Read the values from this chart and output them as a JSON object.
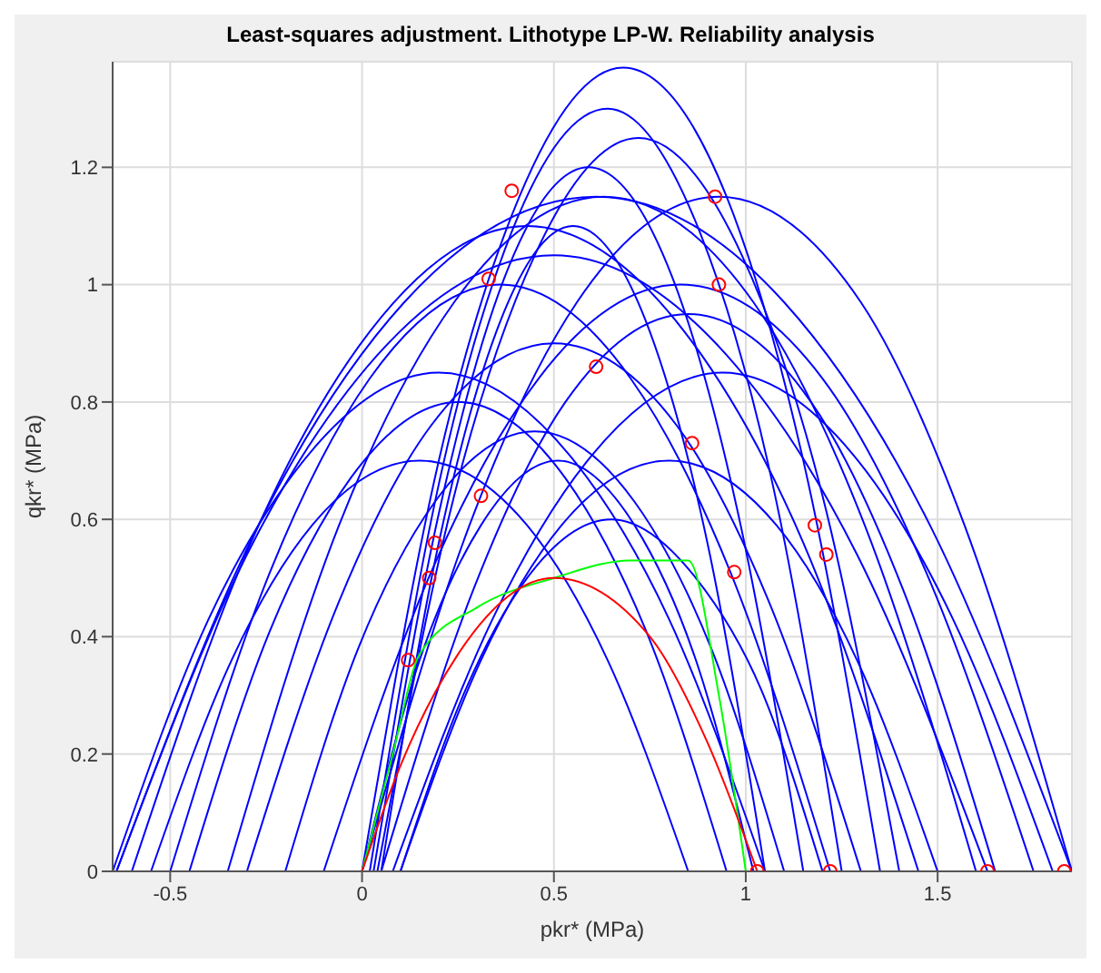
{
  "chart_data": {
    "type": "line",
    "title": "Least-squares adjustment. Lithotype LP-W. Reliability analysis",
    "xlabel": "pkr* (MPa)",
    "ylabel": "qkr* (MPa)",
    "xlim": [
      -0.65,
      1.85
    ],
    "ylim": [
      0,
      1.38
    ],
    "xticks": [
      -0.5,
      0,
      0.5,
      1,
      1.5
    ],
    "yticks": [
      0,
      0.2,
      0.4,
      0.6,
      0.8,
      1,
      1.2
    ],
    "grid": true,
    "line_style": "solid",
    "series": [
      {
        "color": "#0000ff",
        "marker": "none",
        "x": [
          -0.64,
          -0.27,
          0.11,
          0.61,
          1.1,
          1.48,
          1.85
        ],
        "values": [
          0,
          0.59,
          0.97,
          1.15,
          0.97,
          0.59,
          0
        ]
      },
      {
        "color": "#0000ff",
        "marker": "none",
        "x": [
          -0.64,
          -0.3,
          0.04,
          0.5,
          0.95,
          1.29,
          1.63
        ],
        "values": [
          0,
          0.54,
          0.88,
          1.05,
          0.88,
          0.54,
          0
        ]
      },
      {
        "color": "#0000ff",
        "marker": "none",
        "x": [
          -0.5,
          -0.24,
          0.02,
          0.36,
          0.7,
          0.96,
          1.22
        ],
        "values": [
          0,
          0.51,
          0.84,
          1,
          0.84,
          0.51,
          0
        ]
      },
      {
        "color": "#0000ff",
        "marker": "none",
        "x": [
          -0.3,
          -0.06,
          0.18,
          0.5,
          0.82,
          1.06,
          1.3
        ],
        "values": [
          0,
          0.46,
          0.76,
          0.9,
          0.76,
          0.46,
          0
        ]
      },
      {
        "color": "#0000ff",
        "marker": "none",
        "x": [
          -0.2,
          -0.01,
          0.19,
          0.45,
          0.71,
          0.91,
          1.1
        ],
        "values": [
          0,
          0.38,
          0.63,
          0.75,
          0.63,
          0.38,
          0
        ]
      },
      {
        "color": "#0000ff",
        "marker": "none",
        "x": [
          0,
          0.2,
          0.41,
          0.68,
          0.95,
          1.15,
          1.35
        ],
        "values": [
          0,
          0.7,
          1.15,
          1.37,
          1.15,
          0.7,
          0
        ]
      },
      {
        "color": "#0000ff",
        "marker": "none",
        "x": [
          0.02,
          0.2,
          0.39,
          0.64,
          0.88,
          1.07,
          1.25
        ],
        "values": [
          0,
          0.66,
          1.09,
          1.3,
          1.09,
          0.66,
          0
        ]
      },
      {
        "color": "#0000ff",
        "marker": "none",
        "x": [
          0.03,
          0.2,
          0.37,
          0.59,
          0.81,
          0.98,
          1.15
        ],
        "values": [
          0,
          0.61,
          1.01,
          1.2,
          1.01,
          0.61,
          0
        ]
      },
      {
        "color": "#0000ff",
        "marker": "none",
        "x": [
          0.05,
          0.2,
          0.35,
          0.55,
          0.75,
          0.9,
          1.05
        ],
        "values": [
          0,
          0.56,
          0.92,
          1.1,
          0.92,
          0.56,
          0
        ]
      },
      {
        "color": "#0000ff",
        "marker": "none",
        "x": [
          0,
          0.28,
          0.56,
          0.93,
          1.3,
          1.57,
          1.85
        ],
        "values": [
          0,
          0.59,
          0.97,
          1.15,
          0.97,
          0.59,
          0
        ]
      },
      {
        "color": "#0000ff",
        "marker": "none",
        "x": [
          0.05,
          0.29,
          0.53,
          0.85,
          1.17,
          1.41,
          1.65
        ],
        "values": [
          0,
          0.48,
          0.8,
          0.95,
          0.8,
          0.48,
          0
        ]
      },
      {
        "color": "#0000ff",
        "marker": "none",
        "x": [
          -0.65,
          -0.4,
          -0.14,
          0.2,
          0.54,
          0.8,
          1.05
        ],
        "values": [
          0,
          0.43,
          0.71,
          0.85,
          0.71,
          0.43,
          0
        ]
      },
      {
        "color": "#0000ff",
        "marker": "none",
        "x": [
          -0.45,
          -0.24,
          -0.03,
          0.25,
          0.53,
          0.74,
          0.95
        ],
        "values": [
          0,
          0.41,
          0.67,
          0.8,
          0.67,
          0.41,
          0
        ]
      },
      {
        "color": "#0000ff",
        "marker": "none",
        "x": [
          0.1,
          0.31,
          0.52,
          0.8,
          1.08,
          1.29,
          1.5
        ],
        "values": [
          0,
          0.36,
          0.59,
          0.7,
          0.59,
          0.36,
          0
        ]
      },
      {
        "color": "#0000ff",
        "marker": "none",
        "x": [
          0.1,
          0.27,
          0.43,
          0.65,
          0.87,
          1.04,
          1.2
        ],
        "values": [
          0,
          0.31,
          0.5,
          0.6,
          0.5,
          0.31,
          0
        ]
      },
      {
        "color": "#0000ff",
        "marker": "none",
        "x": [
          -0.6,
          -0.29,
          0.02,
          0.43,
          0.84,
          1.15,
          1.45
        ],
        "values": [
          0,
          0.56,
          0.92,
          1.1,
          0.92,
          0.56,
          0
        ]
      },
      {
        "color": "#0000ff",
        "marker": "none",
        "x": [
          -0.1,
          0.18,
          0.46,
          0.83,
          1.2,
          1.47,
          1.75
        ],
        "values": [
          0,
          0.51,
          0.84,
          1,
          0.84,
          0.51,
          0
        ]
      },
      {
        "color": "#0000ff",
        "marker": "none",
        "x": [
          0.08,
          0.34,
          0.6,
          0.94,
          1.28,
          1.54,
          1.8
        ],
        "values": [
          0,
          0.43,
          0.71,
          0.85,
          0.71,
          0.43,
          0
        ]
      },
      {
        "color": "#0000ff",
        "marker": "none",
        "x": [
          0,
          0.15,
          0.31,
          0.51,
          0.71,
          0.87,
          1.02
        ],
        "values": [
          0,
          0.36,
          0.59,
          0.7,
          0.59,
          0.36,
          0
        ]
      },
      {
        "color": "#0000ff",
        "marker": "none",
        "x": [
          -0.35,
          -0.06,
          0.24,
          0.63,
          1.02,
          1.31,
          1.6
        ],
        "values": [
          0,
          0.59,
          0.97,
          1.15,
          0.97,
          0.59,
          0
        ]
      },
      {
        "color": "#0000ff",
        "marker": "none",
        "x": [
          0.04,
          0.24,
          0.45,
          0.72,
          0.99,
          1.2,
          1.4
        ],
        "values": [
          0,
          0.64,
          1.05,
          1.25,
          1.05,
          0.64,
          0
        ]
      },
      {
        "color": "#0000ff",
        "marker": "none",
        "x": [
          -0.55,
          -0.34,
          -0.13,
          0.15,
          0.43,
          0.64,
          0.85
        ],
        "values": [
          0,
          0.36,
          0.59,
          0.7,
          0.59,
          0.36,
          0
        ]
      },
      {
        "color": "#00ff00",
        "marker": "none",
        "x": [
          0,
          0.08,
          0.15,
          0.3,
          0.5,
          0.7,
          0.85,
          0.93,
          1
        ],
        "values": [
          0,
          0.2,
          0.37,
          0.45,
          0.5,
          0.53,
          0.53,
          0.3,
          0
        ]
      },
      {
        "color": "#ff0000",
        "marker": "none",
        "x": [
          0,
          0.1,
          0.25,
          0.5,
          0.75,
          0.9,
          1.03
        ],
        "values": [
          0,
          0.18,
          0.37,
          0.5,
          0.4,
          0.22,
          0
        ]
      },
      {
        "type": "scatter",
        "color": "#ff0000",
        "marker": "circle",
        "x": [
          1.03,
          1.22,
          1.63,
          1.83,
          0.39,
          0.92,
          0.33,
          0.93,
          0.61,
          0.86,
          1.18,
          1.21,
          0.31,
          0.19,
          0.175,
          0.12,
          0.97
        ],
        "values": [
          0,
          0,
          0,
          0,
          1.16,
          1.15,
          1.01,
          1,
          0.86,
          0.73,
          0.59,
          0.54,
          0.64,
          0.56,
          0.5,
          0.36,
          0.51
        ]
      }
    ]
  }
}
